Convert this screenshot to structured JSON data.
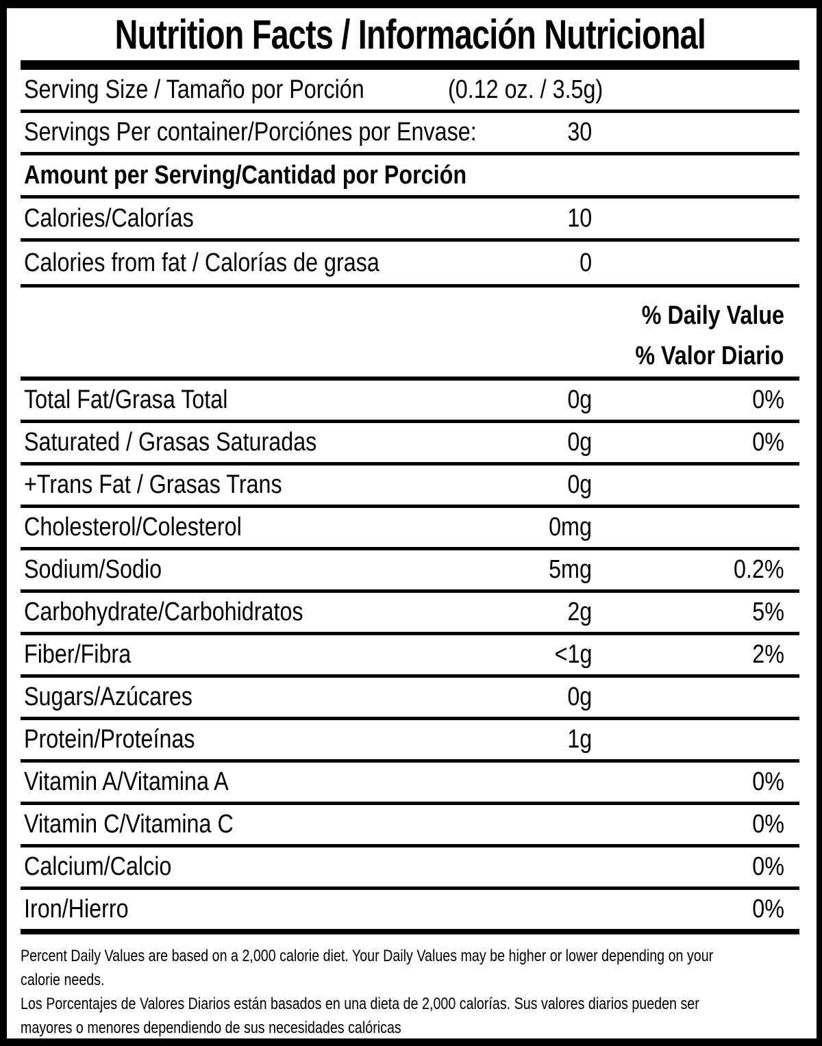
{
  "title": "Nutrition Facts / Información Nutricional",
  "serving_size": {
    "label": "Serving Size / Tamaño por Porción",
    "value": "(0.12 oz. / 3.5g)"
  },
  "servings_per_container": {
    "label": "Servings Per container/Porciónes por Envase:",
    "value": "30"
  },
  "amount_per_serving_header": "Amount per Serving/Cantidad por Porción",
  "calories": {
    "label": "Calories/Calorías",
    "value": "10"
  },
  "calories_from_fat": {
    "label": "Calories from fat / Calorías de grasa",
    "value": "0"
  },
  "daily_value_header": {
    "en": "% Daily Value",
    "es": "% Valor Diario"
  },
  "nutrients": [
    {
      "label": "Total Fat/Grasa Total",
      "amount": "0g",
      "percent": "0%"
    },
    {
      "label": "Saturated / Grasas Saturadas",
      "amount": "0g",
      "percent": "0%"
    },
    {
      "label": "+Trans Fat / Grasas Trans",
      "amount": "0g",
      "percent": ""
    },
    {
      "label": "Cholesterol/Colesterol",
      "amount": "0mg",
      "percent": ""
    },
    {
      "label": "Sodium/Sodio",
      "amount": "5mg",
      "percent": "0.2%"
    },
    {
      "label": "Carbohydrate/Carbohidratos",
      "amount": "2g",
      "percent": "5%"
    },
    {
      "label": "Fiber/Fibra",
      "amount": "<1g",
      "percent": "2%"
    },
    {
      "label": "Sugars/Azúcares",
      "amount": "0g",
      "percent": ""
    },
    {
      "label": "Protein/Proteínas",
      "amount": "1g",
      "percent": ""
    },
    {
      "label": "Vitamin A/Vitamina A",
      "amount": "",
      "percent": "0%"
    },
    {
      "label": "Vitamin C/Vitamina C",
      "amount": "",
      "percent": "0%"
    },
    {
      "label": "Calcium/Calcio",
      "amount": "",
      "percent": "0%"
    },
    {
      "label": "Iron/Hierro",
      "amount": "",
      "percent": "0%"
    }
  ],
  "footnote": {
    "en_lines": [
      "Percent Daily Values are based on a 2,000 calorie diet. Your Daily Values may be higher or lower depending on your",
      "calorie needs."
    ],
    "es_lines": [
      "Los Porcentajes de Valores Diarios están basados en una dieta de 2,000 calorías. Sus valores diarios pueden ser",
      "mayores o menores dependiendo de sus necesidades calóricas"
    ]
  },
  "colors": {
    "ink": "#000000",
    "paper": "#ffffff"
  }
}
